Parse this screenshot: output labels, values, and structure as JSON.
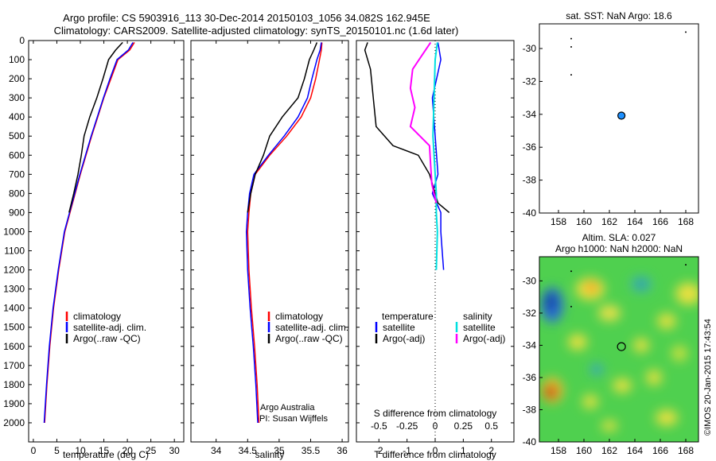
{
  "header": {
    "line1": "Argo profile: CS 5903916_113 30-Dec-2014 20150103_1056 34.082S 162.945E",
    "line2": "Climatology: CARS2009. Satellite-adjusted climatology: synTS_20150101.nc (1.6d later)"
  },
  "colors": {
    "climatology": "#ff0000",
    "satellite": "#0000ff",
    "argo": "#000000",
    "sat_salinity": "#00e0e0",
    "argo_salinity": "#ff00ff"
  },
  "depth_ticks": [
    "0",
    "100",
    "200",
    "300",
    "400",
    "500",
    "600",
    "700",
    "800",
    "900",
    "1000",
    "1100",
    "1200",
    "1300",
    "1400",
    "1500",
    "1600",
    "1700",
    "1800",
    "1900",
    "2000"
  ],
  "chart_data": [
    {
      "type": "line",
      "xlabel": "temperature (deg C)",
      "xlim": [
        -1,
        32
      ],
      "ylim": [
        2100,
        0
      ],
      "xticks": [
        "0",
        "5",
        "10",
        "15",
        "20",
        "25",
        "30"
      ],
      "legend": [
        "climatology",
        "satellite-adj. clim.",
        "Argo(..raw -QC)"
      ],
      "series": [
        {
          "name": "climatology",
          "depth": [
            10,
            50,
            100,
            200,
            300,
            400,
            500,
            600,
            700,
            800,
            900,
            1000,
            1200,
            1400,
            1600,
            1800,
            2000
          ],
          "values": [
            21.5,
            20.5,
            18.0,
            16.5,
            15.0,
            13.7,
            12.4,
            11.2,
            10.0,
            8.9,
            7.8,
            6.7,
            5.4,
            4.3,
            3.5,
            2.9,
            2.4
          ]
        },
        {
          "name": "satellite-adj. clim.",
          "depth": [
            10,
            50,
            100,
            200,
            300,
            400,
            500,
            600,
            700,
            800,
            900,
            1000,
            1200,
            1400,
            1600,
            1800,
            2000
          ],
          "values": [
            21.2,
            20.2,
            17.8,
            16.3,
            14.9,
            13.6,
            12.3,
            11.1,
            9.9,
            8.8,
            7.7,
            6.6,
            5.3,
            4.2,
            3.4,
            2.8,
            2.3
          ]
        },
        {
          "name": "Argo(..raw -QC)",
          "depth": [
            10,
            50,
            100,
            200,
            300,
            400,
            500,
            600,
            700,
            800,
            900
          ],
          "values": [
            19.0,
            17.5,
            16.0,
            14.8,
            13.5,
            12.0,
            10.8,
            10.2,
            9.5,
            8.6,
            7.6
          ]
        }
      ]
    },
    {
      "type": "line",
      "xlabel": "salinity",
      "xlim": [
        33.6,
        36.1
      ],
      "ylim": [
        2100,
        0
      ],
      "xticks": [
        "34",
        "34.5",
        "35",
        "35.5",
        "36"
      ],
      "legend": [
        "climatology",
        "satellite-adj. clim.",
        "Argo(..raw -QC)"
      ],
      "annotation": [
        "Argo Australia",
        "PI: Susan Wijffels"
      ],
      "series": [
        {
          "name": "climatology",
          "depth": [
            10,
            50,
            100,
            200,
            300,
            400,
            500,
            600,
            700,
            800,
            900,
            1000,
            1200,
            1400,
            1600,
            1800,
            2000
          ],
          "values": [
            35.68,
            35.67,
            35.64,
            35.58,
            35.5,
            35.35,
            35.12,
            34.85,
            34.62,
            34.55,
            34.52,
            34.5,
            34.52,
            34.56,
            34.61,
            34.65,
            34.68
          ]
        },
        {
          "name": "satellite-adj. clim.",
          "depth": [
            10,
            50,
            100,
            200,
            300,
            400,
            500,
            600,
            700,
            800,
            900,
            1000,
            1200,
            1400,
            1600,
            1800,
            2000
          ],
          "values": [
            35.67,
            35.65,
            35.6,
            35.52,
            35.45,
            35.3,
            35.08,
            34.83,
            34.6,
            34.53,
            34.5,
            34.48,
            34.5,
            34.54,
            34.59,
            34.63,
            34.66
          ]
        },
        {
          "name": "Argo(..raw -QC)",
          "depth": [
            10,
            50,
            100,
            200,
            300,
            400,
            500,
            600,
            700,
            800,
            900
          ],
          "values": [
            35.6,
            35.55,
            35.48,
            35.4,
            35.3,
            35.05,
            34.85,
            34.75,
            34.62,
            34.55,
            34.5
          ]
        }
      ]
    },
    {
      "type": "line",
      "xlabel": "T difference from climatology",
      "xlabel_top": "S difference from climatology",
      "xlim": [
        -2.8,
        2.8
      ],
      "ylim": [
        2100,
        0
      ],
      "xticks_bottom": [
        "-2",
        "-1",
        "0",
        "1",
        "2"
      ],
      "xticks_top": [
        "-0.5",
        "-0.25",
        "0",
        "0.25",
        "0.5"
      ],
      "legend": {
        "temperature_header": "temperature",
        "salinity_header": "salinity",
        "satellite": "satellite",
        "argo_adj": "Argo(-adj)"
      },
      "series": [
        {
          "name": "temperature satellite",
          "depth": [
            10,
            100,
            300,
            500,
            700,
            800,
            900,
            1000,
            1100,
            1200
          ],
          "values": [
            0.1,
            0.2,
            -0.1,
            0.0,
            0.1,
            -0.1,
            0.2,
            0.2,
            0.25,
            0.3
          ]
        },
        {
          "name": "temperature Argo(-adj)",
          "depth": [
            10,
            50,
            150,
            300,
            450,
            500,
            550,
            600,
            700,
            800,
            850,
            900
          ],
          "values": [
            -2.4,
            -2.5,
            -2.3,
            -2.2,
            -2.1,
            -1.8,
            -1.5,
            -0.6,
            -0.2,
            0.0,
            0.1,
            0.5
          ]
        },
        {
          "name": "salinity satellite",
          "depth": [
            10,
            100,
            300,
            500,
            700,
            800,
            900,
            1000,
            1200
          ],
          "values": [
            0.02,
            0.0,
            -0.01,
            -0.02,
            0.0,
            0.01,
            0.01,
            0.02,
            0.01
          ]
        },
        {
          "name": "salinity Argo(-adj)",
          "depth": [
            10,
            80,
            150,
            250,
            350,
            450,
            550,
            650,
            750,
            850
          ],
          "values": [
            -0.04,
            -0.12,
            -0.2,
            -0.22,
            -0.18,
            -0.22,
            -0.05,
            -0.04,
            -0.03,
            0.01
          ]
        }
      ]
    },
    {
      "type": "scatter",
      "title": "sat. SST: NaN Argo: 18.6",
      "xlim": [
        156.5,
        169
      ],
      "ylim": [
        -40,
        -28.5
      ],
      "xticks": [
        "158",
        "160",
        "162",
        "164",
        "166",
        "168"
      ],
      "yticks": [
        "-30",
        "-32",
        "-34",
        "-36",
        "-38",
        "-40"
      ],
      "points": [
        {
          "x": 162.945,
          "y": -34.082
        }
      ]
    },
    {
      "type": "heatmap",
      "title_line1": "Altim. SLA: 0.027",
      "title_line2": "Argo h1000: NaN h2000: NaN",
      "xlim": [
        156.5,
        169
      ],
      "ylim": [
        -40,
        -28.5
      ],
      "xticks": [
        "158",
        "160",
        "162",
        "164",
        "166",
        "168"
      ],
      "yticks": [
        "-30",
        "-32",
        "-34",
        "-36",
        "-38",
        "-40"
      ],
      "points": [
        {
          "x": 162.945,
          "y": -34.082
        }
      ]
    }
  ],
  "watermark": "©IMOS 20-Jan-2015 17:43:54"
}
